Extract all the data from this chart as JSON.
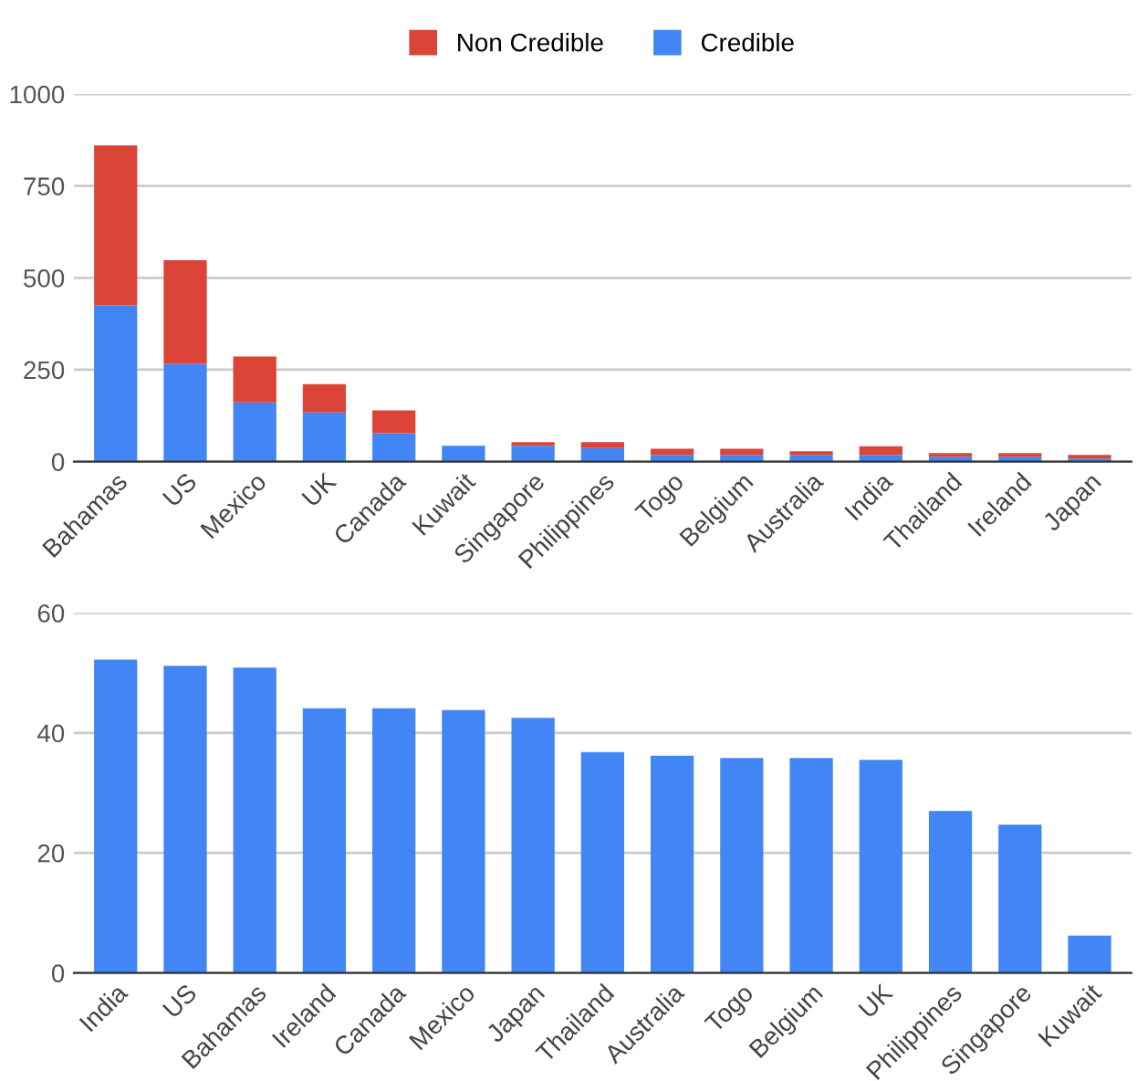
{
  "chart_data": [
    {
      "type": "bar",
      "stacked": true,
      "categories": [
        "Bahamas",
        "US",
        "Mexico",
        "UK",
        "Canada",
        "Kuwait",
        "Singapore",
        "Philippines",
        "Togo",
        "Belgium",
        "Australia",
        "India",
        "Thailand",
        "Ireland",
        "Japan"
      ],
      "series": [
        {
          "name": "Credible",
          "color": "#4285f4",
          "values": [
            425,
            266,
            161,
            134,
            77,
            43,
            43,
            37,
            18,
            18,
            18,
            18,
            13,
            13,
            8
          ]
        },
        {
          "name": "Non Credible",
          "color": "#db4437",
          "values": [
            435,
            282,
            125,
            77,
            62,
            0,
            10,
            16,
            17,
            17,
            10,
            24,
            10,
            10,
            10
          ]
        }
      ],
      "ylim": [
        0,
        1000
      ],
      "yticks": [
        0,
        250,
        500,
        750,
        1000
      ],
      "grid": "y",
      "legend": "top"
    },
    {
      "type": "bar",
      "categories": [
        "India",
        "US",
        "Bahamas",
        "Ireland",
        "Canada",
        "Mexico",
        "Japan",
        "Thailand",
        "Australia",
        "Togo",
        "Belgium",
        "UK",
        "Philippines",
        "Singapore",
        "Kuwait"
      ],
      "series": [
        {
          "color": "#4285f4",
          "values": [
            52.2,
            51.2,
            50.9,
            44.1,
            44.1,
            43.8,
            42.5,
            36.8,
            36.2,
            35.8,
            35.8,
            35.5,
            27.0,
            24.7,
            6.2
          ]
        }
      ],
      "ylim": [
        0,
        60
      ],
      "yticks": [
        0,
        20,
        40,
        60
      ],
      "grid": "y"
    }
  ]
}
